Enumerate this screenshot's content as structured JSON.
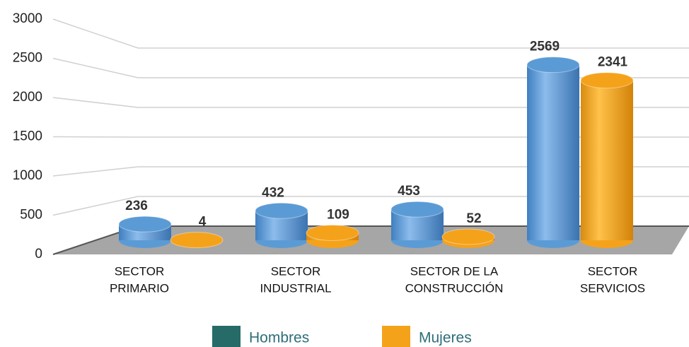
{
  "chart_data": {
    "type": "bar3d",
    "categories": [
      [
        "SECTOR",
        "PRIMARIO"
      ],
      [
        "SECTOR",
        "INDUSTRIAL"
      ],
      [
        "SECTOR DE LA",
        "CONSTRUCCIÓN"
      ],
      [
        "SECTOR",
        "SERVICIOS"
      ]
    ],
    "series": [
      {
        "name": "Hombres",
        "color": "#266b68",
        "bar_color": "#5b9bd5",
        "values": [
          236,
          432,
          453,
          2569
        ]
      },
      {
        "name": "Mujeres",
        "color": "#f5a21b",
        "bar_color": "#f5a21b",
        "values": [
          4,
          109,
          52,
          2341
        ]
      }
    ],
    "ylim": [
      0,
      3000
    ],
    "yticks": [
      0,
      500,
      1000,
      1500,
      2000,
      2500,
      3000
    ],
    "grid": true
  }
}
